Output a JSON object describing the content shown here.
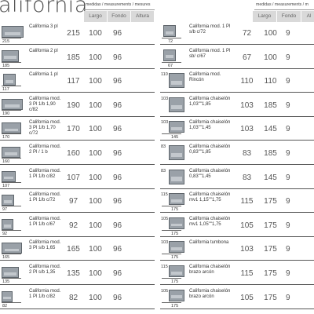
{
  "title": "alifornia",
  "measure_header": "medidas / measurements / mesures",
  "measure_header_right": "medidas / measurements / m",
  "columns": [
    "Largo",
    "Fondo",
    "Altura"
  ],
  "columns_right": [
    "Largo",
    "Fondo",
    "Al"
  ],
  "left_rows": [
    {
      "thumb_width": "215",
      "name": "California 3 pl",
      "largo": "215",
      "fondo": "100",
      "altura": "96"
    },
    {
      "thumb_width": "185",
      "name": "California 2 pl",
      "largo": "185",
      "fondo": "100",
      "altura": "96"
    },
    {
      "thumb_width": "117",
      "name": "California 1 pl",
      "largo": "117",
      "fondo": "100",
      "altura": "96"
    },
    {
      "thumb_width": "190",
      "name": "California mod. 3 Pl 1/b 1,90 c/82",
      "largo": "190",
      "fondo": "100",
      "altura": "96"
    },
    {
      "thumb_width": "170",
      "name": "California mod. 3 Pl 1/b 1,70 c/72",
      "largo": "170",
      "fondo": "100",
      "altura": "96"
    },
    {
      "thumb_width": "160",
      "name": "California mod. 2 Pl / 1 b",
      "largo": "160",
      "fondo": "100",
      "altura": "96"
    },
    {
      "thumb_width": "107",
      "name": "California mod. 1 Pl 1/b c/82",
      "largo": "107",
      "fondo": "100",
      "altura": "96"
    },
    {
      "thumb_width": "97",
      "name": "California mod. 1 Pl 1/b c/72",
      "largo": "97",
      "fondo": "100",
      "altura": "96"
    },
    {
      "thumb_width": "92",
      "name": "California mod. 1 Pl 1/b c/67",
      "largo": "92",
      "fondo": "100",
      "altura": "96"
    },
    {
      "thumb_width": "165",
      "name": "California mod. 3 Pl s/b 1,65",
      "largo": "165",
      "fondo": "100",
      "altura": "96"
    },
    {
      "thumb_width": "135",
      "name": "California mod. 2 Pl s/b 1,35",
      "largo": "135",
      "fondo": "100",
      "altura": "96"
    },
    {
      "thumb_width": "82",
      "name": "California mod. 1 Pl 1/b c/82",
      "largo": "82",
      "fondo": "100",
      "altura": "96"
    }
  ],
  "right_rows": [
    {
      "thumb_width": "72",
      "thumb_depth": "",
      "name": "California mod. 1 Pl s/b c/72",
      "largo": "72",
      "fondo": "100",
      "altura": "9"
    },
    {
      "thumb_width": "67",
      "thumb_depth": "",
      "name": "California mod. 1 Pl sb/ c/67",
      "largo": "67",
      "fondo": "100",
      "altura": "9"
    },
    {
      "thumb_width": "",
      "thumb_depth": "110",
      "name": "California mod. Rincón",
      "largo": "110",
      "fondo": "110",
      "altura": "9"
    },
    {
      "thumb_width": "",
      "thumb_depth": "103",
      "name": "California chaiselón 1,03\"\"1,85",
      "largo": "103",
      "fondo": "185",
      "altura": "9"
    },
    {
      "thumb_width": "145",
      "thumb_depth": "103",
      "name": "California chaiselón 1,03\"\"1,45",
      "largo": "103",
      "fondo": "145",
      "altura": "9"
    },
    {
      "thumb_width": "",
      "thumb_depth": "83",
      "name": "California chaiselón 0,83\"\"1,85",
      "largo": "83",
      "fondo": "185",
      "altura": "9"
    },
    {
      "thumb_width": "",
      "thumb_depth": "83",
      "name": "California chaiselón 0,83\"\"1,45",
      "largo": "83",
      "fondo": "145",
      "altura": "9"
    },
    {
      "thumb_width": "175",
      "thumb_depth": "115",
      "name": "California chaiselón mv1 1,15\"\"1,75",
      "largo": "115",
      "fondo": "175",
      "altura": "9"
    },
    {
      "thumb_width": "175",
      "thumb_depth": "105",
      "name": "California chaiselón mv1 1,05\"\"1,75",
      "largo": "105",
      "fondo": "175",
      "altura": "9"
    },
    {
      "thumb_width": "175",
      "thumb_depth": "103",
      "name": "California tumbona",
      "largo": "103",
      "fondo": "175",
      "altura": "9"
    },
    {
      "thumb_width": "175",
      "thumb_depth": "115",
      "name": "California chaiselón brazo arcón",
      "largo": "115",
      "fondo": "175",
      "altura": "9"
    },
    {
      "thumb_width": "175",
      "thumb_depth": "105",
      "name": "California chaiselón brazo arcón",
      "largo": "105",
      "fondo": "175",
      "altura": "9"
    }
  ]
}
